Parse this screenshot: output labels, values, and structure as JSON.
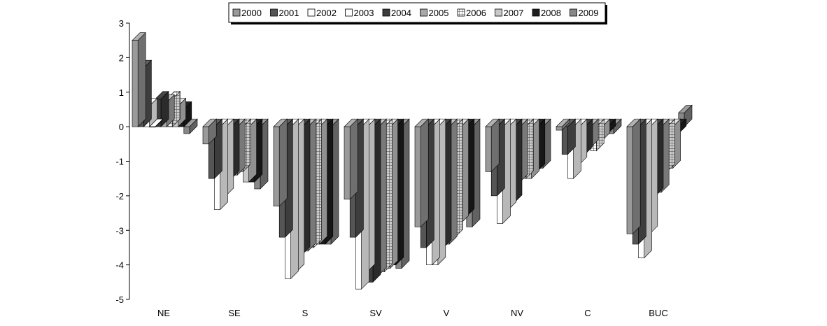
{
  "chart_data": {
    "type": "bar",
    "categories": [
      "NE",
      "SE",
      "S",
      "SV",
      "V",
      "NV",
      "C",
      "BUC"
    ],
    "ylim": [
      -5,
      3
    ],
    "yticks": [
      3,
      2,
      1,
      0,
      -1,
      -2,
      -3,
      -4,
      -5
    ],
    "legend_placement": "top-center",
    "grid": false,
    "series": [
      {
        "name": "2000",
        "color": "#9a9a9a",
        "pattern": "solid",
        "values": [
          2.5,
          -0.5,
          -2.3,
          -2.1,
          -2.9,
          -1.3,
          -0.1,
          -3.1
        ]
      },
      {
        "name": "2001",
        "color": "#555555",
        "pattern": "solid",
        "values": [
          1.7,
          -1.5,
          -3.2,
          -3.2,
          -3.5,
          -2.0,
          -0.8,
          -3.4
        ]
      },
      {
        "name": "2002",
        "color": "#ffffff",
        "pattern": "solid",
        "values": [
          0.6,
          -2.4,
          -4.4,
          -4.7,
          -4.0,
          -2.8,
          -1.5,
          -3.8
        ]
      },
      {
        "name": "2003",
        "color": "#ffffff",
        "pattern": "solid",
        "values": [
          0.0,
          -2.0,
          -4.2,
          -4.2,
          -4.0,
          -2.4,
          -1.1,
          -3.1
        ]
      },
      {
        "name": "2004",
        "color": "#3c3c3c",
        "pattern": "solid",
        "values": [
          0.8,
          -1.5,
          -3.7,
          -4.5,
          -3.5,
          -2.2,
          -0.8,
          -2.0
        ]
      },
      {
        "name": "2005",
        "color": "#a8a8a8",
        "pattern": "solid",
        "values": [
          0.7,
          -1.4,
          -3.6,
          -4.3,
          -3.4,
          -1.6,
          -0.6,
          -1.9
        ]
      },
      {
        "name": "2006",
        "color": "#d0d0d0",
        "pattern": "grid",
        "values": [
          0.8,
          -1.3,
          -3.5,
          -4.2,
          -3.2,
          -1.5,
          -0.7,
          -1.3
        ]
      },
      {
        "name": "2007",
        "color": "#c8c8c8",
        "pattern": "solid",
        "values": [
          0.6,
          -1.6,
          -3.4,
          -4.1,
          -2.8,
          -1.5,
          -0.4,
          -1.2
        ]
      },
      {
        "name": "2008",
        "color": "#1e1e1e",
        "pattern": "solid",
        "values": [
          0.5,
          -1.6,
          -3.4,
          -4.0,
          -2.6,
          -1.3,
          -0.2,
          -0.2
        ]
      },
      {
        "name": "2009",
        "color": "#888888",
        "pattern": "solid",
        "values": [
          -0.2,
          -1.8,
          -3.4,
          -4.1,
          -2.9,
          -1.2,
          -0.2,
          0.4
        ]
      }
    ]
  }
}
